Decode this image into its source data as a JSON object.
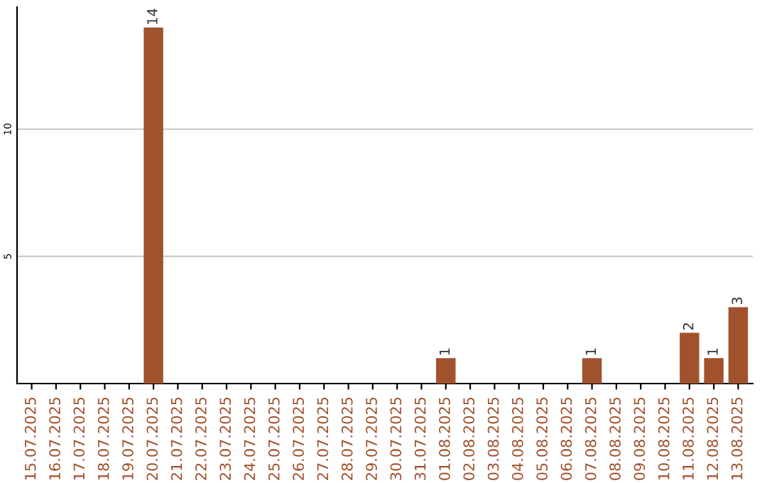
{
  "chart_data": {
    "type": "bar",
    "categories": [
      "15.07.2025",
      "16.07.2025",
      "17.07.2025",
      "18.07.2025",
      "19.07.2025",
      "20.07.2025",
      "21.07.2025",
      "22.07.2025",
      "23.07.2025",
      "24.07.2025",
      "25.07.2025",
      "26.07.2025",
      "27.07.2025",
      "28.07.2025",
      "29.07.2025",
      "30.07.2025",
      "31.07.2025",
      "01.08.2025",
      "02.08.2025",
      "03.08.2025",
      "04.08.2025",
      "05.08.2025",
      "06.08.2025",
      "07.08.2025",
      "08.08.2025",
      "09.08.2025",
      "10.08.2025",
      "11.08.2025",
      "12.08.2025",
      "13.08.2025"
    ],
    "values": [
      0,
      0,
      0,
      0,
      0,
      14,
      0,
      0,
      0,
      0,
      0,
      0,
      0,
      0,
      0,
      0,
      0,
      1,
      0,
      0,
      0,
      0,
      0,
      1,
      0,
      0,
      0,
      2,
      1,
      3
    ],
    "value_labels": [
      null,
      null,
      null,
      null,
      null,
      "14",
      null,
      null,
      null,
      null,
      null,
      null,
      null,
      null,
      null,
      null,
      null,
      "1",
      null,
      null,
      null,
      null,
      null,
      "1",
      null,
      null,
      null,
      "2",
      "1",
      "3"
    ],
    "color": "#a0522d",
    "ylim": [
      0,
      14.8
    ],
    "yticks": [
      5,
      10
    ],
    "grid": "y"
  }
}
